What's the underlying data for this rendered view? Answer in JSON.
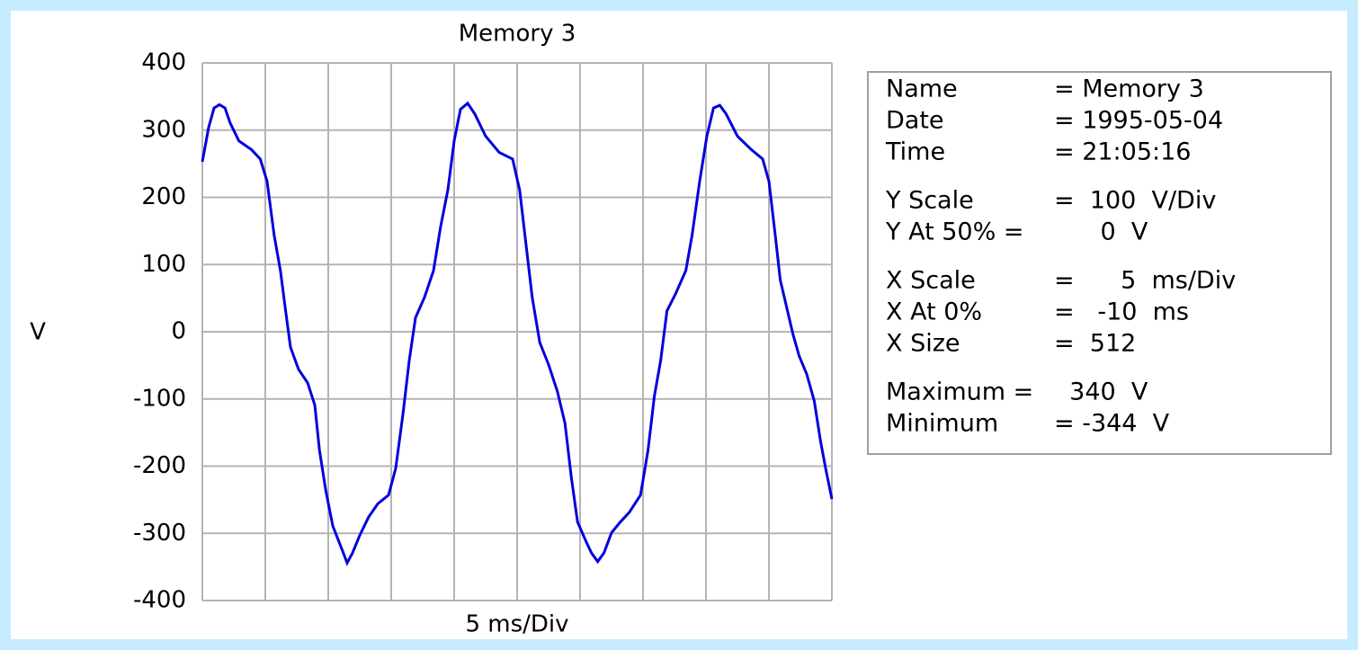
{
  "chart_data": {
    "type": "line",
    "title": "Memory 3",
    "xlabel": "5 ms/Div",
    "ylabel": "V",
    "xlim": [
      -10,
      40
    ],
    "xticks": [
      -10,
      -5,
      0,
      5,
      10,
      15,
      20,
      25,
      30,
      35,
      40
    ],
    "ylim": [
      -400,
      400
    ],
    "yticks": [
      -400,
      -300,
      -200,
      -100,
      0,
      100,
      200,
      300,
      400
    ],
    "grid": true,
    "series": [
      {
        "name": "Memory 3",
        "color": "#0000dd",
        "x": [
          -10,
          -9.5,
          -9.07,
          -8.64,
          -8.2,
          -7.8,
          -7.1,
          -6.1,
          -5.4,
          -4.86,
          -4.3,
          -3.8,
          -3.4,
          -3.0,
          -2.36,
          -1.64,
          -1.07,
          -0.7,
          -0.2,
          0.36,
          1.07,
          1.5,
          1.93,
          2.5,
          3.2,
          3.93,
          4.79,
          5.36,
          5.93,
          6.43,
          6.93,
          7.64,
          8.36,
          8.93,
          9.5,
          10,
          10.5,
          11.07,
          11.64,
          12.5,
          13.57,
          14.64,
          15.2,
          15.7,
          16.2,
          16.8,
          17.5,
          18.2,
          18.8,
          19.3,
          19.8,
          20.4,
          20.9,
          21.4,
          21.9,
          22.5,
          23.2,
          23.9,
          24.8,
          25.4,
          25.9,
          26.4,
          26.9,
          27.6,
          28.4,
          28.9,
          29.5,
          30.07,
          30.6,
          31.1,
          31.6,
          32.5,
          33.6,
          34.5,
          35.0,
          35.5,
          35.9,
          36.4,
          36.9,
          37.4,
          38.0,
          38.6,
          39.1,
          39.5,
          40
        ],
        "values": [
          253,
          304,
          333,
          338,
          333,
          311,
          284,
          271,
          257,
          224,
          144,
          91,
          33,
          -23,
          -56,
          -76,
          -109,
          -176,
          -236,
          -289,
          -323,
          -344,
          -329,
          -303,
          -276,
          -256,
          -243,
          -203,
          -123,
          -43,
          21,
          51,
          91,
          157,
          211,
          284,
          331,
          340,
          324,
          291,
          267,
          257,
          211,
          131,
          51,
          -16,
          -49,
          -89,
          -136,
          -216,
          -283,
          -309,
          -329,
          -342,
          -329,
          -299,
          -283,
          -269,
          -243,
          -176,
          -96,
          -43,
          31,
          57,
          91,
          144,
          224,
          291,
          333,
          337,
          324,
          291,
          271,
          257,
          224,
          144,
          77,
          37,
          -3,
          -36,
          -63,
          -103,
          -163,
          -203,
          -249
        ]
      }
    ]
  },
  "info_panel": [
    [
      {
        "label": "Name",
        "value": "= Memory 3"
      },
      {
        "label": "Date",
        "value": "= 1995-05-04"
      },
      {
        "label": "Time",
        "value": "= 21:05:16"
      }
    ],
    [
      {
        "label": "Y Scale",
        "value": "=  100  V/Div"
      },
      {
        "label": "Y At 50% =",
        "value": "      0  V"
      }
    ],
    [
      {
        "label": "X Scale",
        "value": "=      5  ms/Div"
      },
      {
        "label": "X At 0%",
        "value": "=   -10  ms"
      },
      {
        "label": "X Size",
        "value": "=  512"
      }
    ],
    [
      {
        "label": "Maximum =",
        "value": "  340  V"
      },
      {
        "label": "Minimum",
        "value": "= -344  V"
      }
    ]
  ]
}
